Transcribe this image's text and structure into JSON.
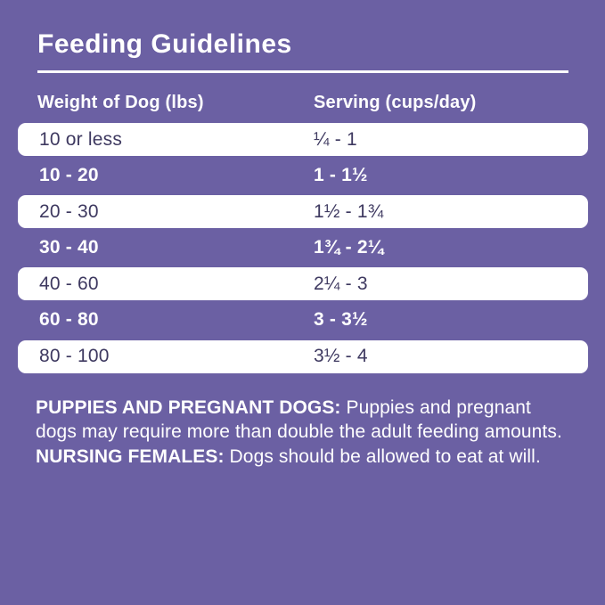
{
  "title": "Feeding Guidelines",
  "colors": {
    "background_purple": "#6B60A3",
    "row_white": "#FFFFFF",
    "dark_row_text": "#3E3960",
    "white_text": "#FFFFFF"
  },
  "table": {
    "headers": {
      "weight": "Weight of Dog (lbs)",
      "serving": "Serving (cups/day)"
    },
    "rows": [
      {
        "weight": "10 or less",
        "serving": "¼ - 1"
      },
      {
        "weight": "10 - 20",
        "serving": "1 - 1½"
      },
      {
        "weight": "20 - 30",
        "serving": "1½ - 1¾"
      },
      {
        "weight": "30 - 40",
        "serving": "1¾ - 2¼"
      },
      {
        "weight": "40 - 60",
        "serving": "2¼ - 3"
      },
      {
        "weight": "60 - 80",
        "serving": "3 - 3½"
      },
      {
        "weight": "80 - 100",
        "serving": "3½ - 4"
      }
    ]
  },
  "footnote": {
    "bold1": "PUPPIES AND PREGNANT DOGS:",
    "text1": " Puppies and pregnant dogs may require more than double the adult feeding amounts. ",
    "bold2": "NURSING FEMALES:",
    "text2": " Dogs should be allowed to eat at will."
  }
}
